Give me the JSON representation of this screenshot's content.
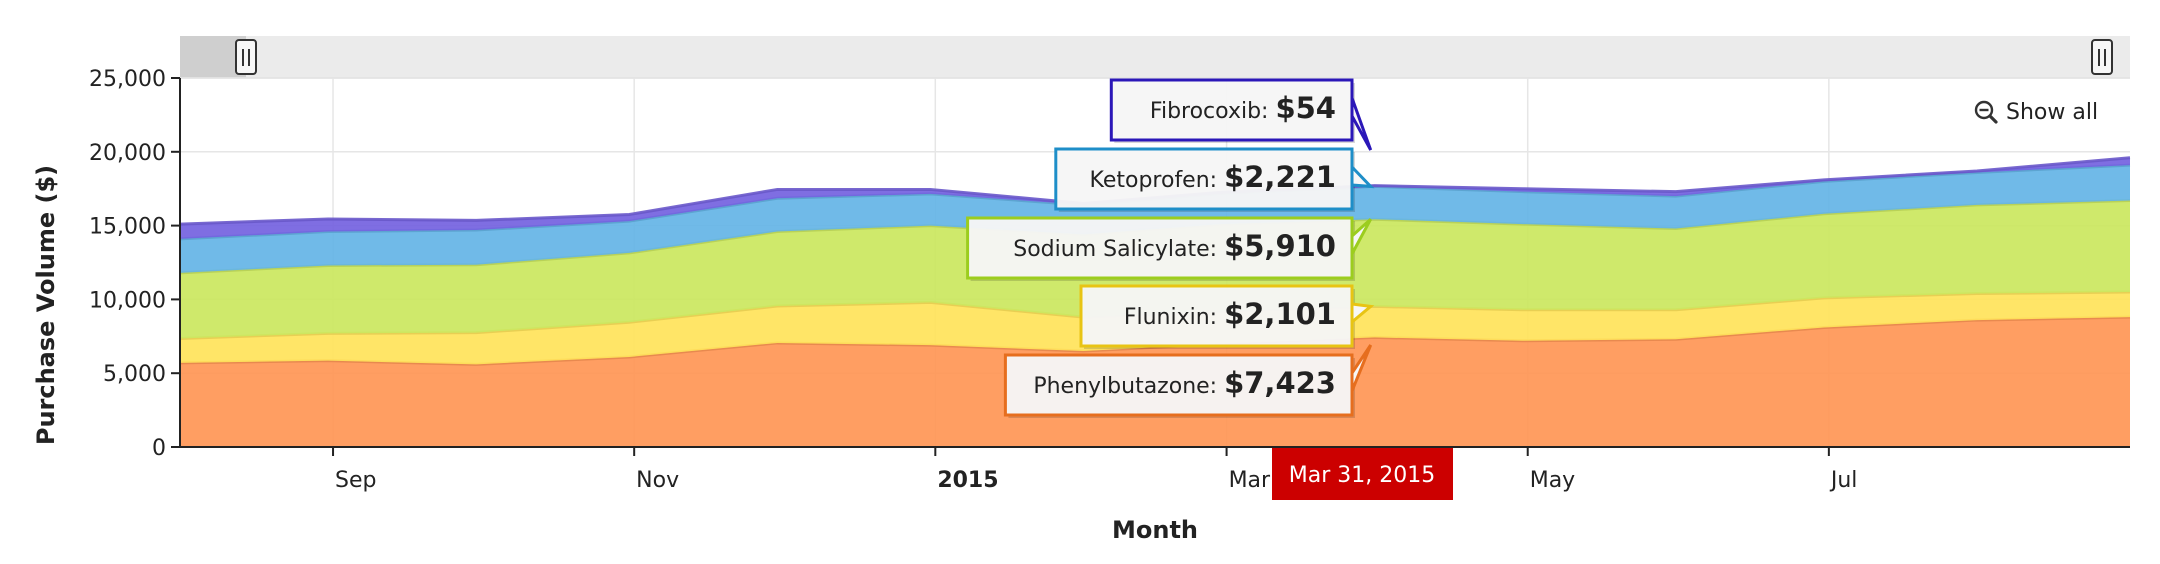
{
  "reset_zoom": {
    "label": "Show all",
    "icon": "zoom-out-icon"
  },
  "chart_data": {
    "type": "area",
    "stacked": true,
    "title": "",
    "xlabel": "Month",
    "ylabel": "Purchase Volume ($)",
    "ylim": [
      0,
      25000
    ],
    "y_ticks": [
      0,
      5000,
      10000,
      15000,
      20000,
      25000
    ],
    "y_tick_labels": [
      "0",
      "5,000",
      "10,000",
      "15,000",
      "20,000",
      "25,000"
    ],
    "x_range": [
      "2014-08-01",
      "2015-08-31"
    ],
    "x_ticks": [
      {
        "date": "2014-09-01",
        "label": "Sep",
        "bold": false
      },
      {
        "date": "2014-11-01",
        "label": "Nov",
        "bold": false
      },
      {
        "date": "2015-01-01",
        "label": "2015",
        "bold": true
      },
      {
        "date": "2015-03-01",
        "label": "Mar",
        "bold": false
      },
      {
        "date": "2015-05-01",
        "label": "May",
        "bold": false
      },
      {
        "date": "2015-07-01",
        "label": "Jul",
        "bold": false
      }
    ],
    "grid": true,
    "x": [
      "2014-08-01",
      "2014-08-31",
      "2014-09-30",
      "2014-10-31",
      "2014-11-30",
      "2014-12-31",
      "2015-01-31",
      "2015-02-28",
      "2015-03-31",
      "2015-04-30",
      "2015-05-31",
      "2015-06-30",
      "2015-07-31",
      "2015-08-31"
    ],
    "series": [
      {
        "name": "Phenylbutazone",
        "color": "#ff9655",
        "values": [
          5700,
          5850,
          5600,
          6100,
          7050,
          6900,
          6500,
          7000,
          7423,
          7200,
          7300,
          8100,
          8600,
          8800
        ]
      },
      {
        "name": "Flunixin",
        "color": "#ffe35a",
        "values": [
          1650,
          1850,
          2150,
          2350,
          2500,
          2900,
          2300,
          2200,
          2101,
          2100,
          2000,
          2000,
          1800,
          1700
        ]
      },
      {
        "name": "Sodium Salicylate",
        "color": "#cbe75e",
        "values": [
          4450,
          4600,
          4600,
          4700,
          5050,
          5200,
          5600,
          5900,
          5910,
          5800,
          5500,
          5700,
          6000,
          6200
        ]
      },
      {
        "name": "Ketoprofen",
        "color": "#64b4e6",
        "values": [
          2300,
          2300,
          2350,
          2150,
          2250,
          2150,
          2000,
          2100,
          2221,
          2200,
          2200,
          2200,
          2200,
          2400
        ]
      },
      {
        "name": "Fibrocoxib",
        "color": "#7462e0",
        "values": [
          1000,
          850,
          650,
          450,
          600,
          300,
          100,
          60,
          54,
          200,
          300,
          100,
          100,
          500
        ]
      }
    ],
    "hover": {
      "date_label": "Mar 31, 2015",
      "index": 8
    },
    "tooltips": [
      {
        "name": "Fibrocoxib",
        "value_text": "$54",
        "border": "#2b17b8"
      },
      {
        "name": "Ketoprofen",
        "value_text": "$2,221",
        "border": "#1e8ec8"
      },
      {
        "name": "Sodium Salicylate",
        "value_text": "$5,910",
        "border": "#9ccd1e"
      },
      {
        "name": "Flunixin",
        "value_text": "$2,101",
        "border": "#e8c414"
      },
      {
        "name": "Phenylbutazone",
        "value_text": "$7,423",
        "border": "#e66e1e"
      }
    ]
  }
}
